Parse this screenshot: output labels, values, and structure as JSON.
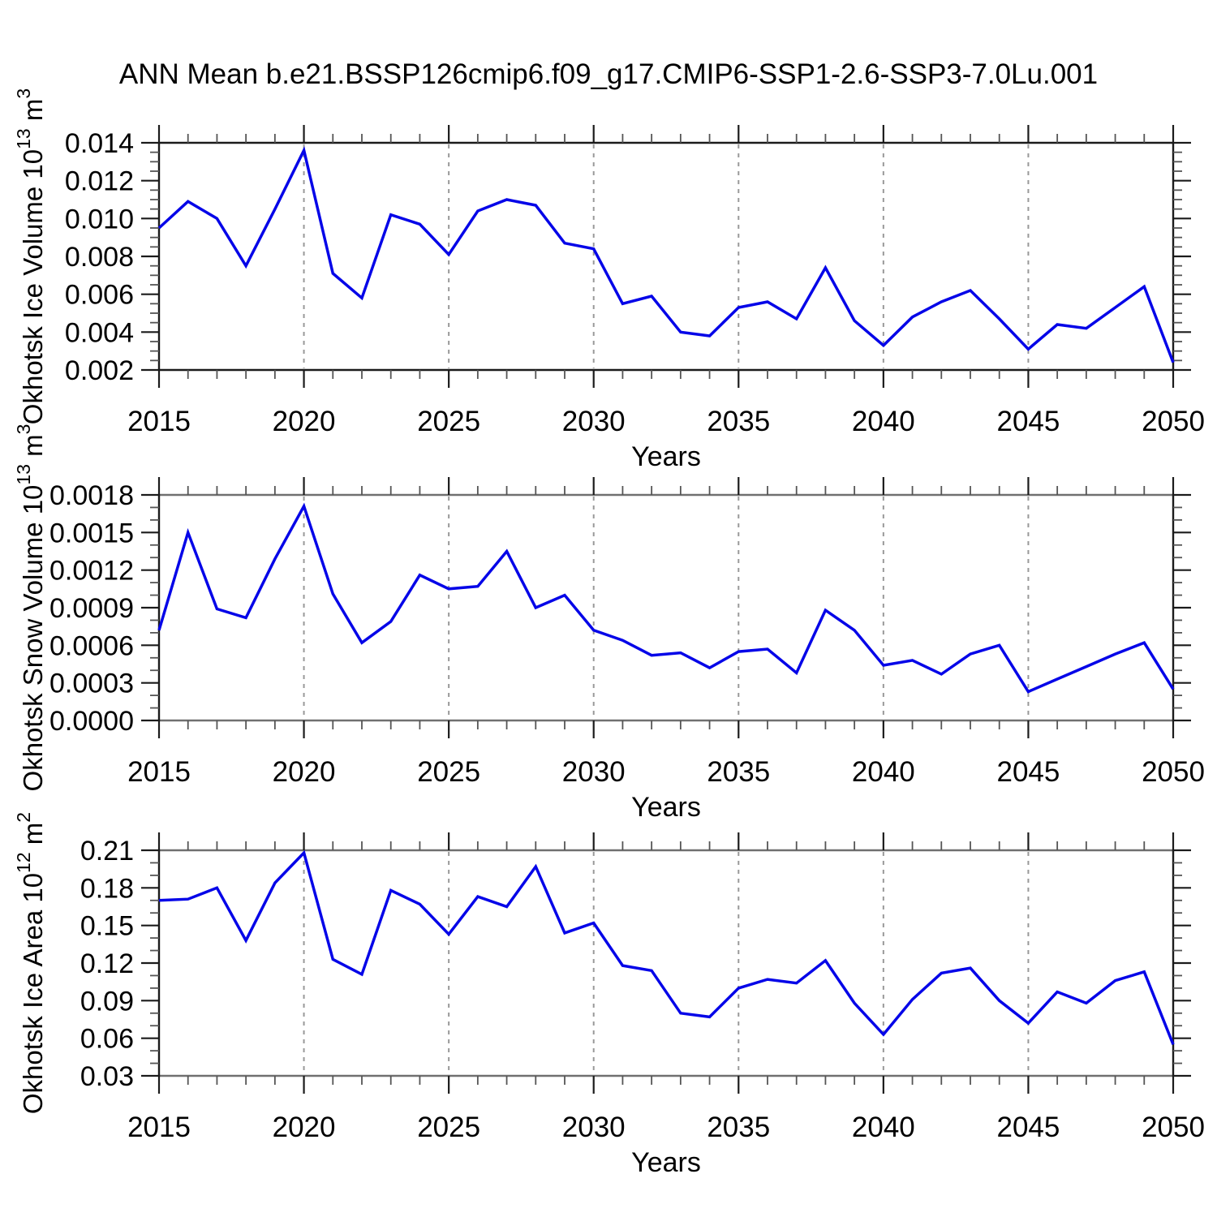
{
  "title": "ANN Mean b.e21.BSSP126cmip6.f09_g17.CMIP6-SSP1-2.6-SSP3-7.0Lu.001",
  "style": {
    "line_color": "#0505e8",
    "grid_color": "#999999",
    "axis_color": "#1b1b1b",
    "minor_tick_color": "#555555",
    "horizontal_border_colors": [
      "#1b1b1b",
      "#707070",
      "#707070"
    ],
    "text_color": "#000000",
    "background": "#ffffff"
  },
  "chart_data": [
    {
      "type": "line",
      "id": "okhotsk-ice-volume",
      "title": "",
      "xlabel": "Years",
      "ylabel": "Okhotsk Ice Volume 10^13 m^3",
      "ylim": [
        0.002,
        0.014
      ],
      "yticks": [
        0.002,
        0.004,
        0.006,
        0.008,
        0.01,
        0.012,
        0.014
      ],
      "ytick_labels": [
        "0.002",
        "0.004",
        "0.006",
        "0.008",
        "0.010",
        "0.012",
        "0.014"
      ],
      "y_minor_step": 0.0005,
      "xlim": [
        2015,
        2050
      ],
      "x_major_ticks": [
        2015,
        2020,
        2025,
        2030,
        2035,
        2040,
        2045,
        2050
      ],
      "x_minor_step": 1,
      "x_gridlines": [
        2020,
        2025,
        2030,
        2035,
        2040,
        2045
      ],
      "grid": "vertical-dashed",
      "legend": "none",
      "x": [
        2015,
        2016,
        2017,
        2018,
        2019,
        2020,
        2021,
        2022,
        2023,
        2024,
        2025,
        2026,
        2027,
        2028,
        2029,
        2030,
        2031,
        2032,
        2033,
        2034,
        2035,
        2036,
        2037,
        2038,
        2039,
        2040,
        2041,
        2042,
        2043,
        2044,
        2045,
        2046,
        2047,
        2048,
        2049,
        2050
      ],
      "y": [
        0.0095,
        0.0109,
        0.01,
        0.0075,
        0.0105,
        0.0136,
        0.0071,
        0.0058,
        0.0102,
        0.0097,
        0.0081,
        0.0104,
        0.011,
        0.0107,
        0.0087,
        0.0084,
        0.0055,
        0.0059,
        0.004,
        0.0038,
        0.0053,
        0.0056,
        0.0047,
        0.0074,
        0.0046,
        0.0033,
        0.0048,
        0.0056,
        0.0062,
        0.0047,
        0.0031,
        0.0044,
        0.0042,
        0.0053,
        0.0064,
        0.0024
      ]
    },
    {
      "type": "line",
      "id": "okhotsk-snow-volume",
      "title": "",
      "xlabel": "Years",
      "ylabel": "Okhotsk Snow Volume 10^13 m^3",
      "ylim": [
        0.0,
        0.0018
      ],
      "yticks": [
        0.0,
        0.0003,
        0.0006,
        0.0009,
        0.0012,
        0.0015,
        0.0018
      ],
      "ytick_labels": [
        "0.0000",
        "0.0003",
        "0.0006",
        "0.0009",
        "0.0012",
        "0.0015",
        "0.0018"
      ],
      "y_minor_step": 0.0001,
      "xlim": [
        2015,
        2050
      ],
      "x_major_ticks": [
        2015,
        2020,
        2025,
        2030,
        2035,
        2040,
        2045,
        2050
      ],
      "x_minor_step": 1,
      "x_gridlines": [
        2020,
        2025,
        2030,
        2035,
        2040,
        2045
      ],
      "grid": "vertical-dashed",
      "legend": "none",
      "x": [
        2015,
        2016,
        2017,
        2018,
        2019,
        2020,
        2021,
        2022,
        2023,
        2024,
        2025,
        2026,
        2027,
        2028,
        2029,
        2030,
        2031,
        2032,
        2033,
        2034,
        2035,
        2036,
        2037,
        2038,
        2039,
        2040,
        2041,
        2042,
        2043,
        2044,
        2045,
        2046,
        2047,
        2048,
        2049,
        2050
      ],
      "y": [
        0.00072,
        0.0015,
        0.00089,
        0.00082,
        0.00129,
        0.00171,
        0.00101,
        0.00062,
        0.00079,
        0.00116,
        0.00105,
        0.00107,
        0.00135,
        0.0009,
        0.001,
        0.00072,
        0.00064,
        0.00052,
        0.00054,
        0.00042,
        0.00055,
        0.00057,
        0.00038,
        0.00088,
        0.00072,
        0.00044,
        0.00048,
        0.00037,
        0.00053,
        0.0006,
        0.00023,
        0.00033,
        0.00043,
        0.00053,
        0.00062,
        0.00025
      ]
    },
    {
      "type": "line",
      "id": "okhotsk-ice-area",
      "title": "",
      "xlabel": "Years",
      "ylabel": "Okhotsk Ice Area 10^12 m^2",
      "ylim": [
        0.03,
        0.21
      ],
      "yticks": [
        0.03,
        0.06,
        0.09,
        0.12,
        0.15,
        0.18,
        0.21
      ],
      "ytick_labels": [
        "0.03",
        "0.06",
        "0.09",
        "0.12",
        "0.15",
        "0.18",
        "0.21"
      ],
      "y_minor_step": 0.01,
      "xlim": [
        2015,
        2050
      ],
      "x_major_ticks": [
        2015,
        2020,
        2025,
        2030,
        2035,
        2040,
        2045,
        2050
      ],
      "x_minor_step": 1,
      "x_gridlines": [
        2020,
        2025,
        2030,
        2035,
        2040,
        2045
      ],
      "grid": "vertical-dashed",
      "legend": "none",
      "x": [
        2015,
        2016,
        2017,
        2018,
        2019,
        2020,
        2021,
        2022,
        2023,
        2024,
        2025,
        2026,
        2027,
        2028,
        2029,
        2030,
        2031,
        2032,
        2033,
        2034,
        2035,
        2036,
        2037,
        2038,
        2039,
        2040,
        2041,
        2042,
        2043,
        2044,
        2045,
        2046,
        2047,
        2048,
        2049,
        2050
      ],
      "y": [
        0.17,
        0.171,
        0.18,
        0.138,
        0.184,
        0.208,
        0.123,
        0.111,
        0.178,
        0.167,
        0.143,
        0.173,
        0.165,
        0.197,
        0.144,
        0.152,
        0.118,
        0.114,
        0.08,
        0.077,
        0.1,
        0.107,
        0.104,
        0.122,
        0.088,
        0.063,
        0.091,
        0.112,
        0.116,
        0.09,
        0.072,
        0.097,
        0.088,
        0.106,
        0.113,
        0.055
      ]
    }
  ]
}
